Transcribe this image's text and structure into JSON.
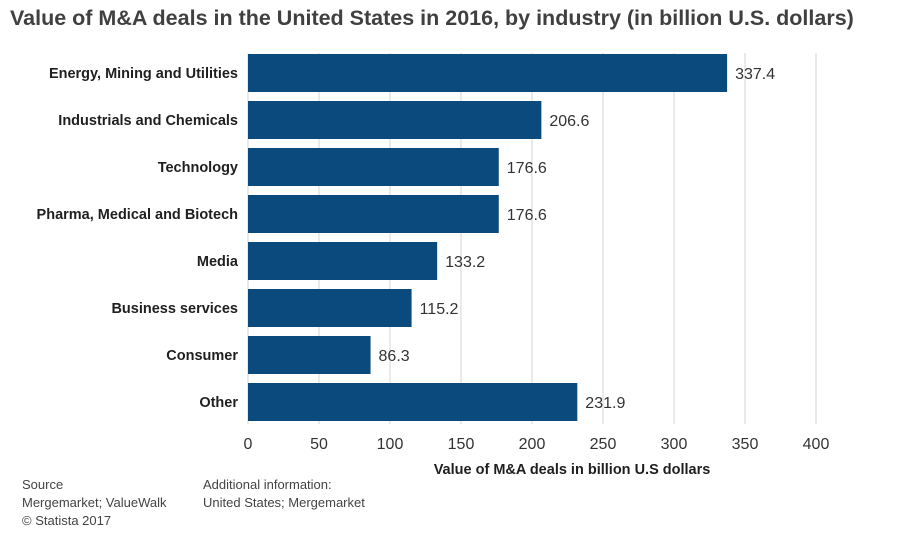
{
  "chart_data": {
    "type": "bar",
    "orientation": "horizontal",
    "title": "Value of M&A deals in the United States in 2016, by industry (in billion U.S. dollars)",
    "categories": [
      "Energy, Mining and Utilities",
      "Industrials and Chemicals",
      "Technology",
      "Pharma, Medical and Biotech",
      "Media",
      "Business services",
      "Consumer",
      "Other"
    ],
    "values": [
      337.4,
      206.6,
      176.6,
      176.6,
      133.2,
      115.2,
      86.3,
      231.9
    ],
    "value_labels": [
      "337.4",
      "206.6",
      "176.6",
      "176.6",
      "133.2",
      "115.2",
      "86.3",
      "231.9"
    ],
    "xlabel": "Value of M&A deals in billion U.S dollars",
    "ylabel": "",
    "xlim": [
      0,
      400
    ],
    "xticks": [
      0,
      50,
      100,
      150,
      200,
      250,
      300,
      350,
      400
    ],
    "grid": true,
    "bar_color": "#0a4a7d",
    "grid_color": "#d6d6d6"
  },
  "footer": {
    "source_heading": "Source",
    "source_text": "Mergemarket; ValueWalk",
    "copyright": "© Statista 2017",
    "info_heading": "Additional information:",
    "info_text": "United States; Mergemarket"
  }
}
